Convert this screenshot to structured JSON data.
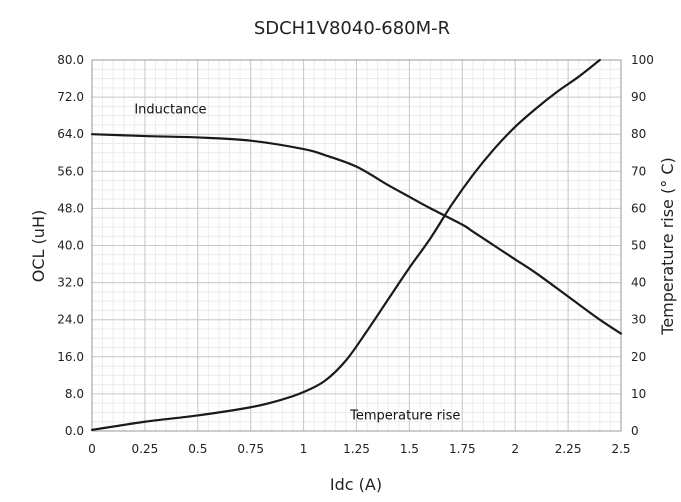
{
  "chart_data": {
    "type": "line",
    "title": "SDCH1V8040-680M-R",
    "xlabel": "Idc (A)",
    "ylabel": "OCL (uH)",
    "y2label": "Temperature rise (° C)",
    "xlim": [
      0,
      2.5
    ],
    "ylim": [
      0,
      80
    ],
    "y2lim": [
      0,
      100
    ],
    "x_ticks": [
      "0",
      "0.25",
      "0.5",
      "0.75",
      "1",
      "1.25",
      "1.5",
      "1.75",
      "2",
      "2.25",
      "2.5"
    ],
    "y_ticks": [
      "0.0",
      "8.0",
      "16.0",
      "24.0",
      "32.0",
      "40.0",
      "48.0",
      "56.0",
      "64.0",
      "72.0",
      "80.0"
    ],
    "y2_ticks": [
      "0",
      "10",
      "20",
      "30",
      "40",
      "50",
      "60",
      "70",
      "80",
      "90",
      "100"
    ],
    "grid": true,
    "series": [
      {
        "name": "Inductance",
        "axis": "left",
        "color": "#1a1a1a",
        "x": [
          0,
          0.25,
          0.5,
          0.75,
          1.0,
          1.1,
          1.25,
          1.4,
          1.5,
          1.6,
          1.75,
          1.8,
          1.9,
          2.0,
          2.1,
          2.25,
          2.4,
          2.5
        ],
        "y": [
          64.0,
          63.6,
          63.3,
          62.6,
          60.8,
          59.5,
          57.0,
          53.0,
          50.5,
          48.0,
          44.5,
          43.0,
          40.0,
          37.0,
          34.0,
          29.0,
          24.0,
          21.0
        ]
      },
      {
        "name": "Temperature rise",
        "axis": "right",
        "color": "#1a1a1a",
        "x": [
          0,
          0.25,
          0.5,
          0.75,
          0.9,
          1.0,
          1.1,
          1.2,
          1.3,
          1.4,
          1.5,
          1.6,
          1.7,
          1.8,
          1.9,
          2.0,
          2.1,
          2.2,
          2.3,
          2.4
        ],
        "y": [
          0.3,
          2.5,
          4.2,
          6.4,
          8.5,
          10.5,
          13.5,
          19.0,
          27.0,
          35.5,
          44.0,
          52.0,
          61.0,
          69.0,
          76.0,
          82.0,
          87.0,
          91.5,
          95.5,
          100.0
        ]
      }
    ],
    "annotations": [
      {
        "text": "Inductance",
        "x": 0.2,
        "y": 68.5,
        "axis": "left"
      },
      {
        "text": "Temperature rise",
        "x": 1.22,
        "y": 2.5,
        "axis": "left"
      }
    ]
  }
}
